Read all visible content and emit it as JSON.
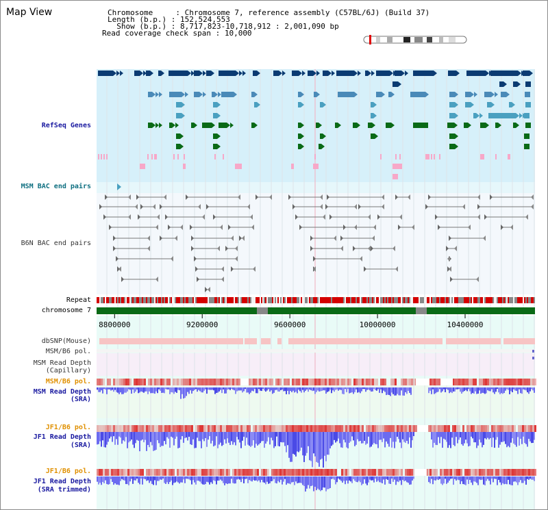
{
  "title": "Map View",
  "info": {
    "chromosome": {
      "key": "Chromosome    ",
      "value": ": Chromosome 7, reference assembly (C57BL/6J) (Build 37)"
    },
    "length": {
      "key": "Length (b.p.)",
      "value": ": 152,524,553"
    },
    "show": {
      "key": "  Show (b.p.)",
      "value": ": 8,717,823-10,718,912 : 2,001,090 bp"
    },
    "coverage": {
      "key": "Read coverage check span",
      "value": ": 10,000"
    }
  },
  "tracks": {
    "refseq": "RefSeq Genes",
    "msm_bac": "MSM BAC end pairs",
    "b6n_bac": "B6N BAC end pairs",
    "repeat": "Repeat",
    "chromosome": "chromosome 7",
    "dbsnp": "dbSNP(Mouse)",
    "msm_b6_pol_1": "MSM/B6 pol.",
    "msm_read_depth_cap_1": "MSM Read Depth",
    "msm_read_depth_cap_2": "(Capillary)",
    "msm_b6_pol_2": "MSM/B6 pol.",
    "msm_read_depth_sra_1": "MSM Read Depth",
    "msm_read_depth_sra_2": "(SRA)",
    "jf1_b6_pol_1": "JF1/B6 pol.",
    "jf1_read_depth_sra_1": "JF1 Read Depth",
    "jf1_read_depth_sra_2": "(SRA)",
    "jf1_b6_pol_2": "JF1/B6 pol.",
    "jf1_read_depth_trim_1": "JF1 Read Depth",
    "jf1_read_depth_trim_2": "(SRA trimmed)"
  },
  "axis": {
    "ticks": [
      "8800000",
      "9200000",
      "9600000",
      "10000000",
      "10400000"
    ],
    "tick_values": [
      8800000,
      9200000,
      9600000,
      10000000,
      10400000
    ],
    "range_start": 8717823,
    "range_end": 10718912
  },
  "colors": {
    "refseq_bg": "#d6f0fa",
    "gene_navy": "#0b3b72",
    "gene_steel": "#4a8ab8",
    "gene_light": "#4aa0c0",
    "gene_green": "#0a6a16",
    "gene_pink": "#f7a8c8",
    "repeat_red": "#d40000",
    "repeat_gray": "#888888",
    "chromosome_green": "#0a6a16",
    "pink_track": "#f7c4c4",
    "depth_blue": "#4444ee"
  }
}
